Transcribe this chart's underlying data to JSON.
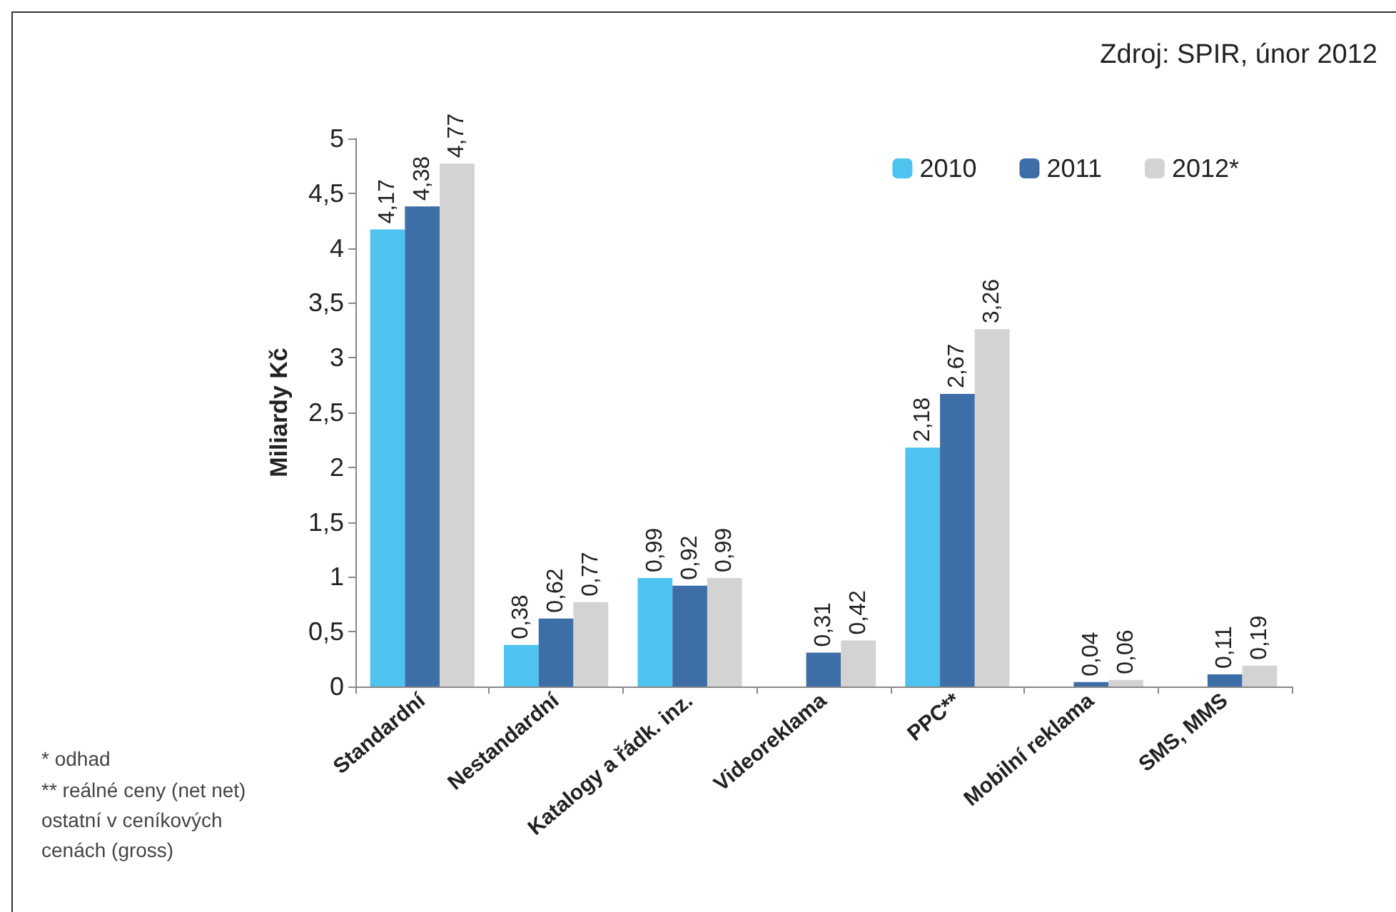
{
  "chart_data": {
    "type": "bar",
    "ylabel": "Miliardy Kč",
    "categories": [
      "Standardní",
      "Nestandardní",
      "Katalogy a řádk. inz.",
      "Videoreklama",
      "PPC**",
      "Mobilní reklama",
      "SMS, MMS"
    ],
    "series": [
      {
        "name": "2010",
        "color": "#4ec3f0",
        "values": [
          4.17,
          0.38,
          0.99,
          null,
          2.18,
          null,
          null
        ],
        "value_labels": [
          "4,17",
          "0,38",
          "0,99",
          null,
          "2,18",
          null,
          null
        ]
      },
      {
        "name": "2011",
        "color": "#3e6ea8",
        "values": [
          4.38,
          0.62,
          0.92,
          0.31,
          2.67,
          0.04,
          0.11
        ],
        "value_labels": [
          "4,38",
          "0,62",
          "0,92",
          "0,31",
          "2,67",
          "0,04",
          "0,11"
        ]
      },
      {
        "name": "2012*",
        "color": "#d3d3d3",
        "values": [
          4.77,
          0.77,
          0.99,
          0.42,
          3.26,
          0.06,
          0.19
        ],
        "value_labels": [
          "4,77",
          "0,77",
          "0,99",
          "0,42",
          "3,26",
          "0,06",
          "0,19"
        ]
      }
    ],
    "ylim": [
      0,
      5
    ],
    "yticks": [
      0,
      {
        "value": 0.5,
        "label": "0,5"
      },
      1,
      {
        "value": 1.5,
        "label": "1,5"
      },
      2,
      {
        "value": 2.5,
        "label": "2,5"
      },
      3,
      {
        "value": 3.5,
        "label": "3,5"
      },
      4,
      {
        "value": 4.5,
        "label": "4,5"
      },
      5
    ],
    "grid": false,
    "legend": "top right",
    "annotations": [
      "Zdroj: SPIR, únor 2012",
      "* odhad",
      "** reálné ceny (net net) ostatní v ceníkových cenách (gross)"
    ]
  }
}
